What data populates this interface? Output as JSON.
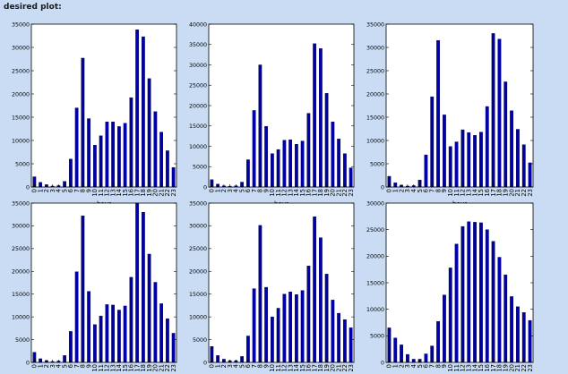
{
  "header": {
    "title": "desired plot:"
  },
  "colors": {
    "bar": "#0000aa",
    "bar_edge": "#000044",
    "axes_bg": "#ffffff",
    "figure_bg": "#c9dcf3"
  },
  "chart_data": [
    {
      "type": "bar",
      "xlabel": "hour",
      "categories": [
        "0",
        "1",
        "2",
        "3",
        "4",
        "5",
        "6",
        "7",
        "8",
        "9",
        "10",
        "11",
        "12",
        "13",
        "14",
        "15",
        "16",
        "17",
        "18",
        "19",
        "20",
        "21",
        "22",
        "23"
      ],
      "values": [
        2200,
        1000,
        500,
        200,
        300,
        1200,
        6000,
        17000,
        27700,
        14700,
        9000,
        11000,
        14000,
        14000,
        13000,
        13700,
        19200,
        33800,
        32300,
        23300,
        16200,
        11800,
        7800,
        4200
      ],
      "ylim": [
        0,
        35000
      ],
      "yticks": [
        0,
        5000,
        10000,
        15000,
        20000,
        25000,
        30000,
        35000
      ],
      "ytick_labels": [
        "0",
        "5000",
        "10000",
        "15000",
        "20000",
        "25000",
        "30000",
        "35000"
      ]
    },
    {
      "type": "bar",
      "xlabel": "hour",
      "categories": [
        "0",
        "1",
        "2",
        "3",
        "4",
        "5",
        "6",
        "7",
        "8",
        "9",
        "10",
        "11",
        "12",
        "13",
        "14",
        "15",
        "16",
        "17",
        "18",
        "19",
        "20",
        "21",
        "22",
        "23"
      ],
      "values": [
        1800,
        700,
        300,
        200,
        300,
        1200,
        6700,
        18800,
        30000,
        14900,
        8200,
        9200,
        11500,
        11600,
        10500,
        11300,
        18100,
        35200,
        34000,
        23000,
        16000,
        11800,
        8200,
        4700
      ],
      "ylim": [
        0,
        40000
      ],
      "yticks": [
        0,
        5000,
        10000,
        15000,
        20000,
        25000,
        30000,
        35000,
        40000
      ],
      "ytick_labels": [
        "0",
        "5000",
        "10000",
        "15000",
        "20000",
        "25000",
        "30000",
        "35000",
        "40000"
      ]
    },
    {
      "type": "bar",
      "xlabel": "hour",
      "categories": [
        "0",
        "1",
        "2",
        "3",
        "4",
        "5",
        "6",
        "7",
        "8",
        "9",
        "10",
        "11",
        "12",
        "13",
        "14",
        "15",
        "16",
        "17",
        "18",
        "19",
        "20",
        "21",
        "22",
        "23"
      ],
      "values": [
        2300,
        900,
        400,
        200,
        300,
        1500,
        6900,
        19400,
        31500,
        15500,
        8700,
        9700,
        12300,
        11700,
        11100,
        11800,
        17300,
        33000,
        31800,
        22600,
        16400,
        12400,
        9100,
        5200
      ],
      "ylim": [
        0,
        35000
      ],
      "yticks": [
        0,
        5000,
        10000,
        15000,
        20000,
        25000,
        30000,
        35000
      ],
      "ytick_labels": [
        "0",
        "5000",
        "10000",
        "15000",
        "20000",
        "25000",
        "30000",
        "35000"
      ]
    },
    {
      "type": "bar",
      "xlabel": "hour",
      "categories": [
        "0",
        "1",
        "2",
        "3",
        "4",
        "5",
        "6",
        "7",
        "8",
        "9",
        "10",
        "11",
        "12",
        "13",
        "14",
        "15",
        "16",
        "17",
        "18",
        "19",
        "20",
        "21",
        "22",
        "23"
      ],
      "values": [
        2200,
        800,
        400,
        200,
        300,
        1500,
        6800,
        19900,
        32200,
        15600,
        8300,
        10200,
        12700,
        12600,
        11500,
        12400,
        18700,
        35000,
        33000,
        23800,
        17600,
        12900,
        9600,
        6400
      ],
      "ylim": [
        0,
        35000
      ],
      "yticks": [
        0,
        5000,
        10000,
        15000,
        20000,
        25000,
        30000,
        35000
      ],
      "ytick_labels": [
        "0",
        "5000",
        "10000",
        "15000",
        "20000",
        "25000",
        "30000",
        "35000"
      ]
    },
    {
      "type": "bar",
      "xlabel": "hour",
      "categories": [
        "0",
        "1",
        "2",
        "3",
        "4",
        "5",
        "6",
        "7",
        "8",
        "9",
        "10",
        "11",
        "12",
        "13",
        "14",
        "15",
        "16",
        "17",
        "18",
        "19",
        "20",
        "21",
        "22",
        "23"
      ],
      "values": [
        3500,
        1500,
        700,
        400,
        400,
        1300,
        5800,
        16200,
        30100,
        16500,
        10000,
        11900,
        15000,
        15500,
        14900,
        15800,
        21200,
        32000,
        27400,
        19400,
        13700,
        10800,
        9400,
        7600
      ],
      "ylim": [
        0,
        35000
      ],
      "yticks": [
        0,
        5000,
        10000,
        15000,
        20000,
        25000,
        30000,
        35000
      ],
      "ytick_labels": [
        "0",
        "5000",
        "10000",
        "15000",
        "20000",
        "25000",
        "30000",
        "35000"
      ]
    },
    {
      "type": "bar",
      "xlabel": "hour",
      "categories": [
        "0",
        "1",
        "2",
        "3",
        "4",
        "5",
        "6",
        "7",
        "8",
        "9",
        "10",
        "11",
        "12",
        "13",
        "14",
        "15",
        "16",
        "17",
        "18",
        "19",
        "20",
        "21",
        "22",
        "23"
      ],
      "values": [
        6500,
        4600,
        3300,
        1500,
        600,
        600,
        1600,
        3100,
        7700,
        12700,
        17800,
        22300,
        25600,
        26500,
        26400,
        26300,
        25000,
        22800,
        19800,
        16500,
        12400,
        10500,
        9400,
        7900
      ],
      "ylim": [
        0,
        30000
      ],
      "yticks": [
        0,
        5000,
        10000,
        15000,
        20000,
        25000,
        30000
      ],
      "ytick_labels": [
        "0",
        "5000",
        "10000",
        "15000",
        "20000",
        "25000",
        "30000"
      ]
    }
  ]
}
